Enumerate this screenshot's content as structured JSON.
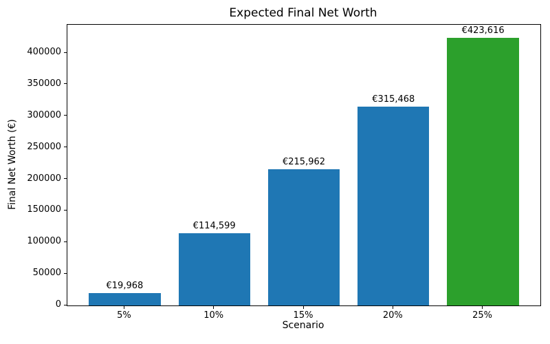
{
  "chart_data": {
    "type": "bar",
    "title": "Expected Final Net Worth",
    "xlabel": "Scenario",
    "ylabel": "Final Net Worth (€)",
    "categories": [
      "5%",
      "10%",
      "15%",
      "20%",
      "25%"
    ],
    "values": [
      19968,
      114599,
      215962,
      315468,
      423616
    ],
    "bar_labels": [
      "€19,968",
      "€114,599",
      "€215,962",
      "€315,468",
      "€423,616"
    ],
    "bar_colors": [
      "#1f77b4",
      "#1f77b4",
      "#1f77b4",
      "#1f77b4",
      "#2ca02c"
    ],
    "yticks": [
      0,
      50000,
      100000,
      150000,
      200000,
      250000,
      300000,
      350000,
      400000
    ],
    "ylim": [
      0,
      444797
    ],
    "bar_width_fraction": 0.8,
    "grid": false,
    "legend": "none",
    "background_color": "#ffffff",
    "text_color": "#000000"
  }
}
